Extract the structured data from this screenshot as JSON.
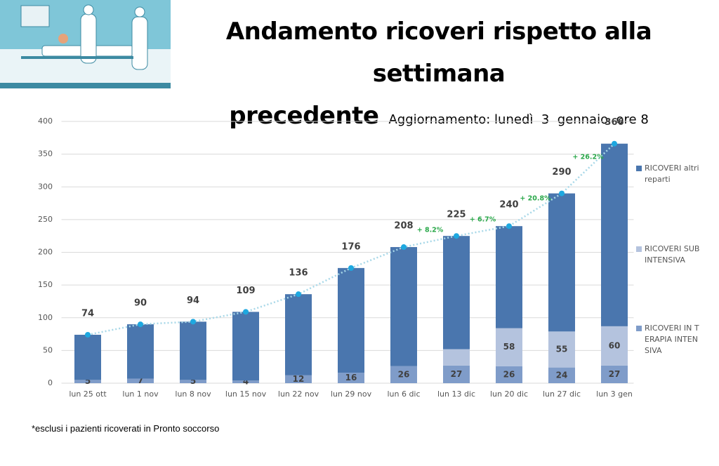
{
  "header": {
    "title": "Andamento ricoveri rispetto alla settimana precedente",
    "subtitle": "Aggiornamento: lunedì  3  gennaio  ore 8"
  },
  "chart_data": {
    "type": "stacked_bar",
    "categories": [
      "lun 25 ott",
      "lun 1 nov",
      "lun 8 nov",
      "lun 15 nov",
      "lun 22 nov",
      "lun 29 nov",
      "lun 6 dic",
      "lun 13 dic",
      "lun 20 dic",
      "lun 27 dic",
      "lun 3 gen"
    ],
    "series": [
      {
        "name": "RICOVERI IN TERAPIA INTENSIVA",
        "color": "#7f9cc9",
        "values": [
          5,
          7,
          5,
          4,
          12,
          16,
          26,
          27,
          26,
          24,
          27
        ],
        "labels": true
      },
      {
        "name": "RICOVERI SUBINTENSIVA",
        "color": "#b4c3de",
        "values": [
          null,
          null,
          null,
          null,
          null,
          null,
          null,
          25,
          58,
          55,
          60
        ],
        "value_labels": [
          null,
          null,
          null,
          null,
          null,
          null,
          null,
          null,
          "58",
          "55",
          "60"
        ]
      },
      {
        "name": "RICOVERI altri reparti",
        "color": "#4a76ae",
        "values": [
          69,
          83,
          89,
          105,
          124,
          160,
          182,
          173,
          156,
          211,
          279
        ]
      }
    ],
    "totals": [
      74,
      90,
      94,
      109,
      136,
      176,
      208,
      225,
      240,
      290,
      366
    ],
    "growth_labels": [
      null,
      null,
      null,
      null,
      null,
      null,
      null,
      "+ 8.2%",
      "+ 6.7%",
      "+ 20.8%",
      "+ 26.2%"
    ],
    "ylim": [
      0,
      400
    ],
    "yticks": [
      0,
      50,
      100,
      150,
      200,
      250,
      300,
      350,
      400
    ],
    "grid": true,
    "line_color": "#a8d8e8",
    "point_color": "#1ea8e0",
    "growth_color": "#2aa84a"
  },
  "footnote": "*esclusi i pazienti ricoverati in Pronto soccorso"
}
